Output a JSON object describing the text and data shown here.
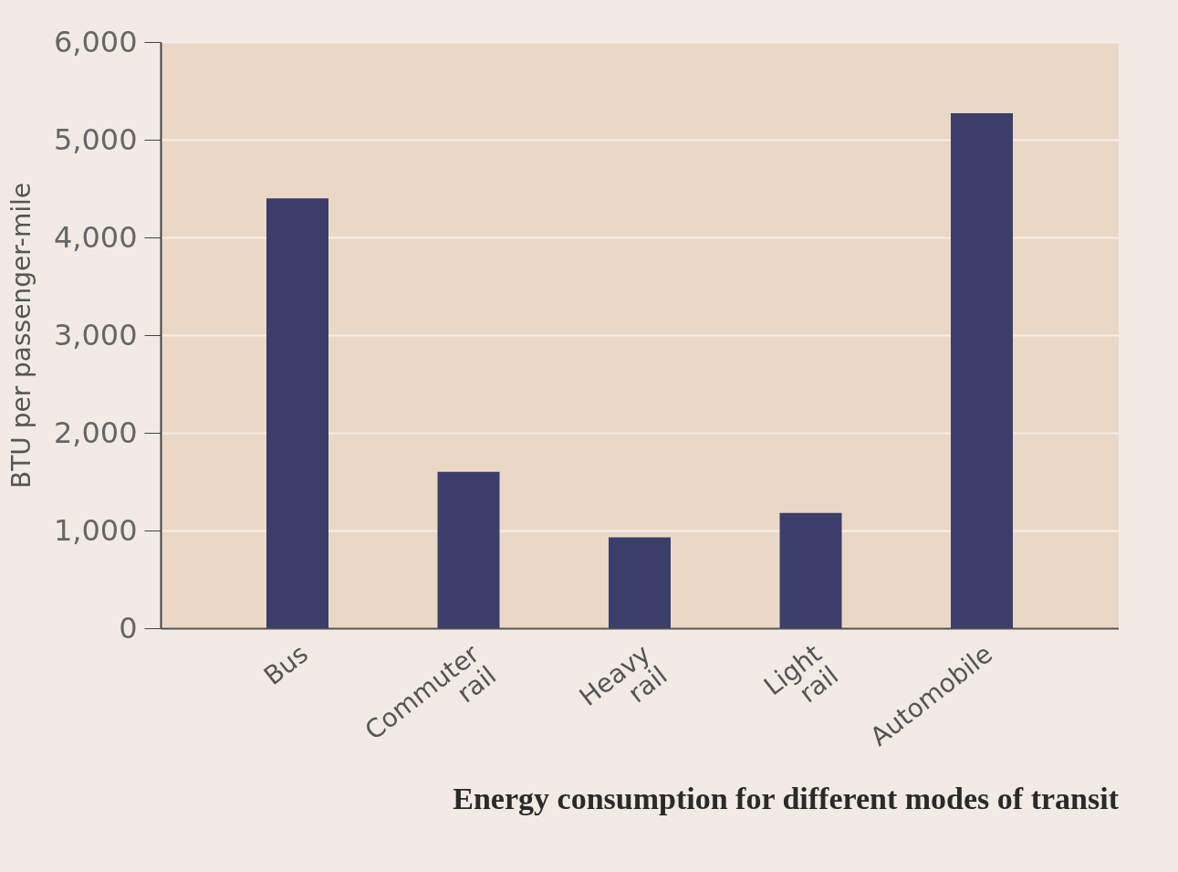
{
  "chart_data": {
    "type": "bar",
    "title": "Energy consumption for different modes of transit",
    "ylabel": "BTU per passenger-mile",
    "categories": [
      "Bus",
      "Commuter rail",
      "Heavy rail",
      "Light rail",
      "Automobile"
    ],
    "values": [
      4400,
      1600,
      930,
      1180,
      5270
    ],
    "color": "#3c3e6a",
    "ylim": [
      0,
      6000
    ],
    "yticks": [
      {
        "value": 0,
        "label": "0"
      },
      {
        "value": 1000,
        "label": "1,000"
      },
      {
        "value": 2000,
        "label": "2,000"
      },
      {
        "value": 3000,
        "label": "3,000"
      },
      {
        "value": 4000,
        "label": "4,000"
      },
      {
        "value": 5000,
        "label": "5,000"
      },
      {
        "value": 6000,
        "label": "6,000"
      }
    ],
    "grid": "y"
  }
}
